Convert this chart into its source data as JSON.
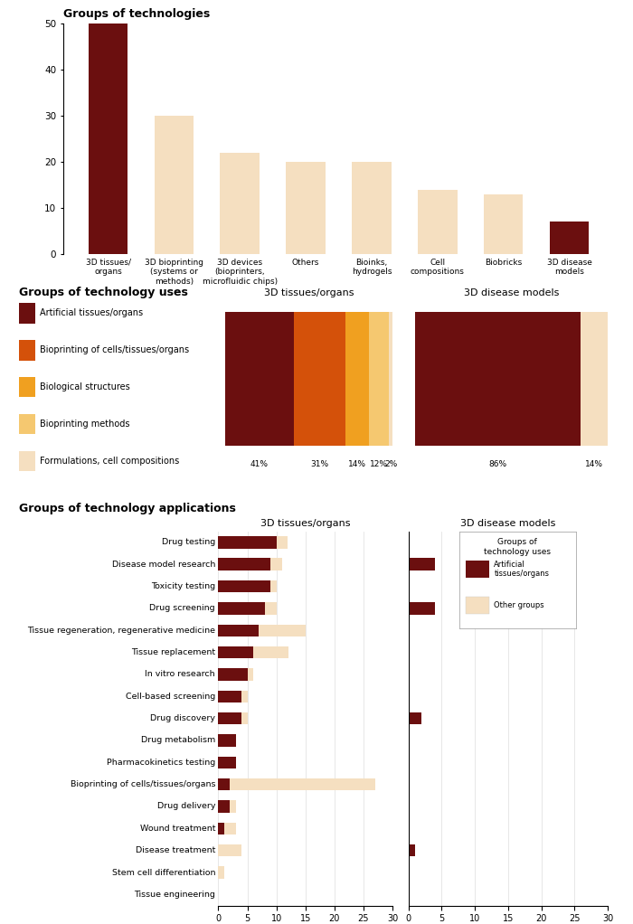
{
  "top_chart": {
    "title": "Groups of technologies",
    "categories": [
      "3D tissues/\norgans",
      "3D bioprinting\n(systems or\nmethods)",
      "3D devices\n(bioprinters,\nmicrofluidic chips)",
      "Others",
      "Bioinks,\nhydrogels",
      "Cell\ncompositions",
      "Biobricks",
      "3D disease\nmodels"
    ],
    "values": [
      50,
      30,
      22,
      20,
      20,
      14,
      13,
      7
    ],
    "colors": [
      "#6b0f0f",
      "#f5dfc0",
      "#f5dfc0",
      "#f5dfc0",
      "#f5dfc0",
      "#f5dfc0",
      "#f5dfc0",
      "#6b0f0f"
    ],
    "ylim": [
      0,
      50
    ],
    "yticks": [
      0,
      10,
      20,
      30,
      40,
      50
    ]
  },
  "middle_chart": {
    "title": "Groups of technology uses",
    "subtitle_left": "3D tissues/organs",
    "subtitle_right": "3D disease models",
    "legend_items": [
      "Artificial tissues/organs",
      "Bioprinting of cells/tissues/organs",
      "Biological structures",
      "Bioprinting methods",
      "Formulations, cell compositions"
    ],
    "legend_colors": [
      "#6b0f0f",
      "#d4510a",
      "#f0a020",
      "#f5c870",
      "#f5dfc0"
    ],
    "tissues_organs": [
      41,
      31,
      14,
      12,
      2
    ],
    "tissues_organs_labels": [
      "41%",
      "31%",
      "14%",
      "12%",
      "2%"
    ],
    "tissues_organs_colors": [
      "#6b0f0f",
      "#d4510a",
      "#f0a020",
      "#f5c870",
      "#f5dfc0"
    ],
    "disease_models": [
      86,
      14
    ],
    "disease_models_labels": [
      "86%",
      "14%"
    ],
    "disease_models_colors": [
      "#6b0f0f",
      "#f5dfc0"
    ]
  },
  "bottom_chart": {
    "title": "Groups of technology applications",
    "subtitle_left": "3D tissues/organs",
    "subtitle_right": "3D disease models",
    "categories": [
      "Drug testing",
      "Disease model research",
      "Toxicity testing",
      "Drug screening",
      "Tissue regeneration, regenerative medicine",
      "Tissue replacement",
      "In vitro research",
      "Cell-based screening",
      "Drug discovery",
      "Drug metabolism",
      "Pharmacokinetics testing",
      "Bioprinting of cells/tissues/organs",
      "Drug delivery",
      "Wound treatment",
      "Disease treatment",
      "Stem cell differentiation",
      "Tissue engineering"
    ],
    "left_dark": [
      10,
      9,
      9,
      8,
      7,
      6,
      5,
      4,
      4,
      3,
      3,
      2,
      2,
      1,
      0,
      0,
      0
    ],
    "left_light": [
      2,
      2,
      1,
      2,
      8,
      6,
      1,
      1,
      1,
      0,
      0,
      25,
      1,
      2,
      4,
      1,
      0
    ],
    "right_dark": [
      0,
      4,
      0,
      4,
      0,
      0,
      0,
      0,
      2,
      0,
      0,
      0,
      0,
      0,
      1,
      0,
      0
    ],
    "right_light": [
      0,
      0,
      0,
      0,
      0,
      0,
      0,
      0,
      0,
      0,
      0,
      0,
      0,
      0,
      0,
      0,
      0
    ],
    "dark_color": "#6b0f0f",
    "light_color": "#f5dfc0",
    "xlim": [
      0,
      30
    ],
    "xticks": [
      0,
      5,
      10,
      15,
      20,
      25,
      30
    ]
  }
}
